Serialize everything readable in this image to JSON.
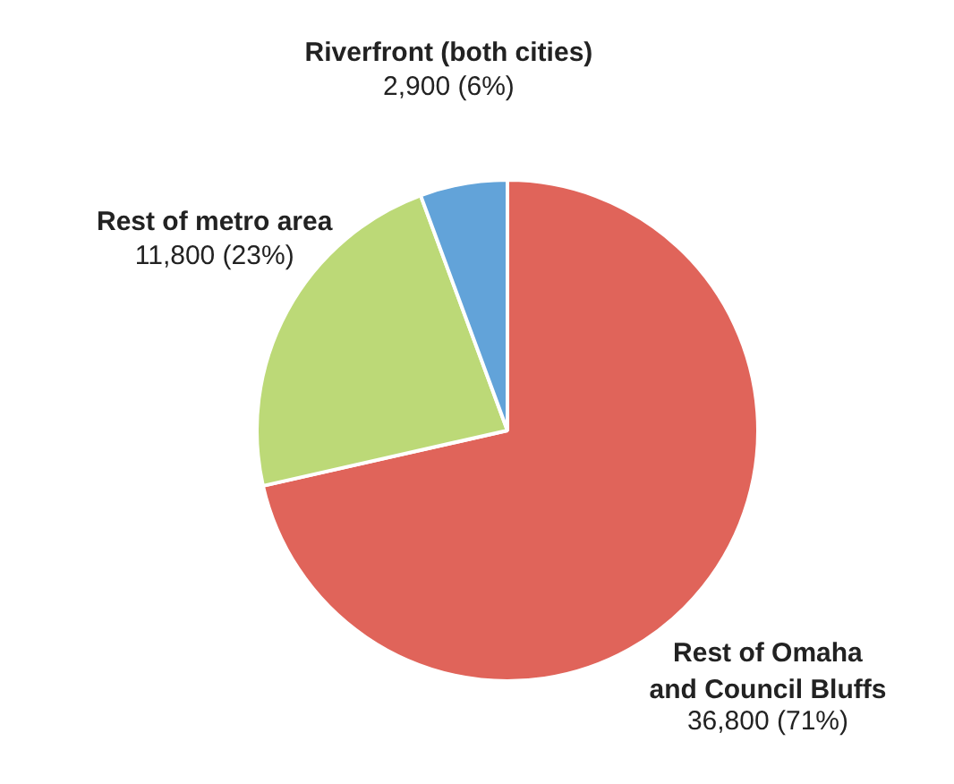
{
  "chart_data": {
    "type": "pie",
    "categories": [
      "Rest of Omaha\nand Council Bluffs",
      "Rest of metro area",
      "Riverfront (both cities)"
    ],
    "values": [
      36800,
      11800,
      2900
    ],
    "colors": [
      "#e0645a",
      "#bcd977",
      "#62a3d9"
    ],
    "value_labels": [
      "36,800 (71%)",
      "11,800 (23%)",
      "2,900 (6%)"
    ]
  }
}
